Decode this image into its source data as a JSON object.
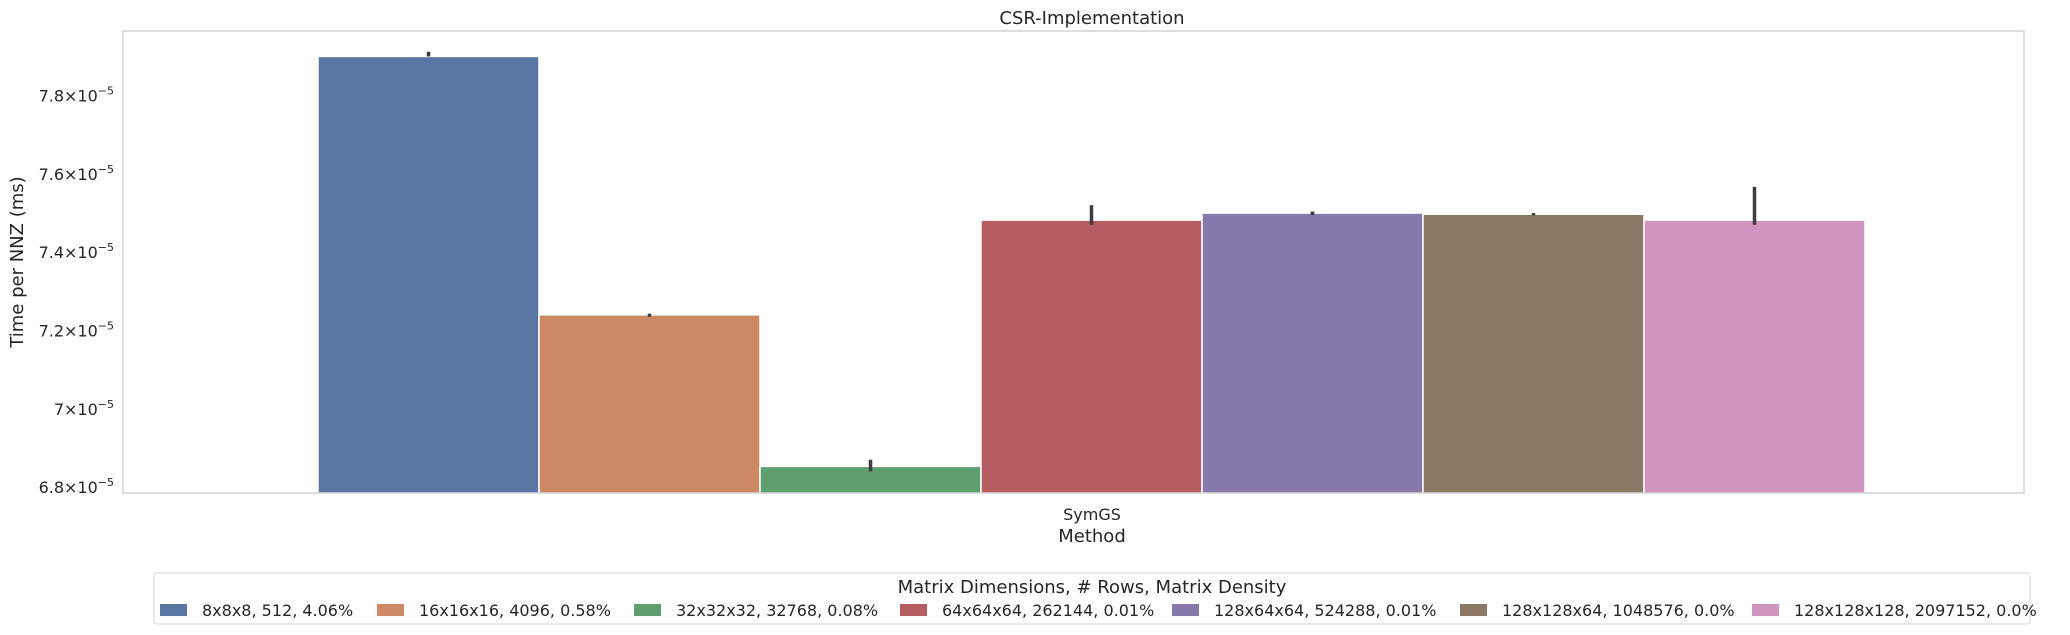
{
  "chart_data": {
    "type": "bar",
    "title": "CSR-Implementation",
    "xlabel": "Method",
    "ylabel": "Time per NNZ (ms)",
    "categories": [
      "SymGS"
    ],
    "ylim": [
      6.785e-05,
      7.965e-05
    ],
    "yticks": [
      {
        "value": 6.8e-05,
        "mant": "6.8",
        "exp": "−5"
      },
      {
        "value": 7e-05,
        "mant": "7",
        "exp": "−5"
      },
      {
        "value": 7.2e-05,
        "mant": "7.2",
        "exp": "−5"
      },
      {
        "value": 7.4e-05,
        "mant": "7.4",
        "exp": "−5"
      },
      {
        "value": 7.6e-05,
        "mant": "7.6",
        "exp": "−5"
      },
      {
        "value": 7.8e-05,
        "mant": "7.8",
        "exp": "−5"
      }
    ],
    "grid": false,
    "legend_title": "Matrix Dimensions, # Rows, Matrix Density",
    "legend_position": "bottom-center",
    "series": [
      {
        "name": "8x8x8, 512, 4.06%",
        "value": 7.9e-05,
        "err_low": 7.9e-05,
        "err_high": 7.912e-05,
        "color": "#5975a4"
      },
      {
        "name": "16x16x16, 4096, 0.58%",
        "value": 7.24e-05,
        "err_low": 7.235e-05,
        "err_high": 7.243e-05,
        "color": "#cc8963"
      },
      {
        "name": "32x32x32, 32768, 0.08%",
        "value": 6.853e-05,
        "err_low": 6.84e-05,
        "err_high": 6.87e-05,
        "color": "#5f9e6e"
      },
      {
        "name": "64x64x64, 262144, 0.01%",
        "value": 7.482e-05,
        "err_low": 7.47e-05,
        "err_high": 7.52e-05,
        "color": "#b55d60"
      },
      {
        "name": "128x64x64, 524288, 0.01%",
        "value": 7.5e-05,
        "err_low": 7.495e-05,
        "err_high": 7.504e-05,
        "color": "#857aab"
      },
      {
        "name": "128x128x64, 1048576, 0.0%",
        "value": 7.497e-05,
        "err_low": 7.494e-05,
        "err_high": 7.5e-05,
        "color": "#8d7866"
      },
      {
        "name": "128x128x128, 2097152, 0.0%",
        "value": 7.482e-05,
        "err_low": 7.47e-05,
        "err_high": 7.567e-05,
        "color": "#d095bf"
      }
    ]
  }
}
